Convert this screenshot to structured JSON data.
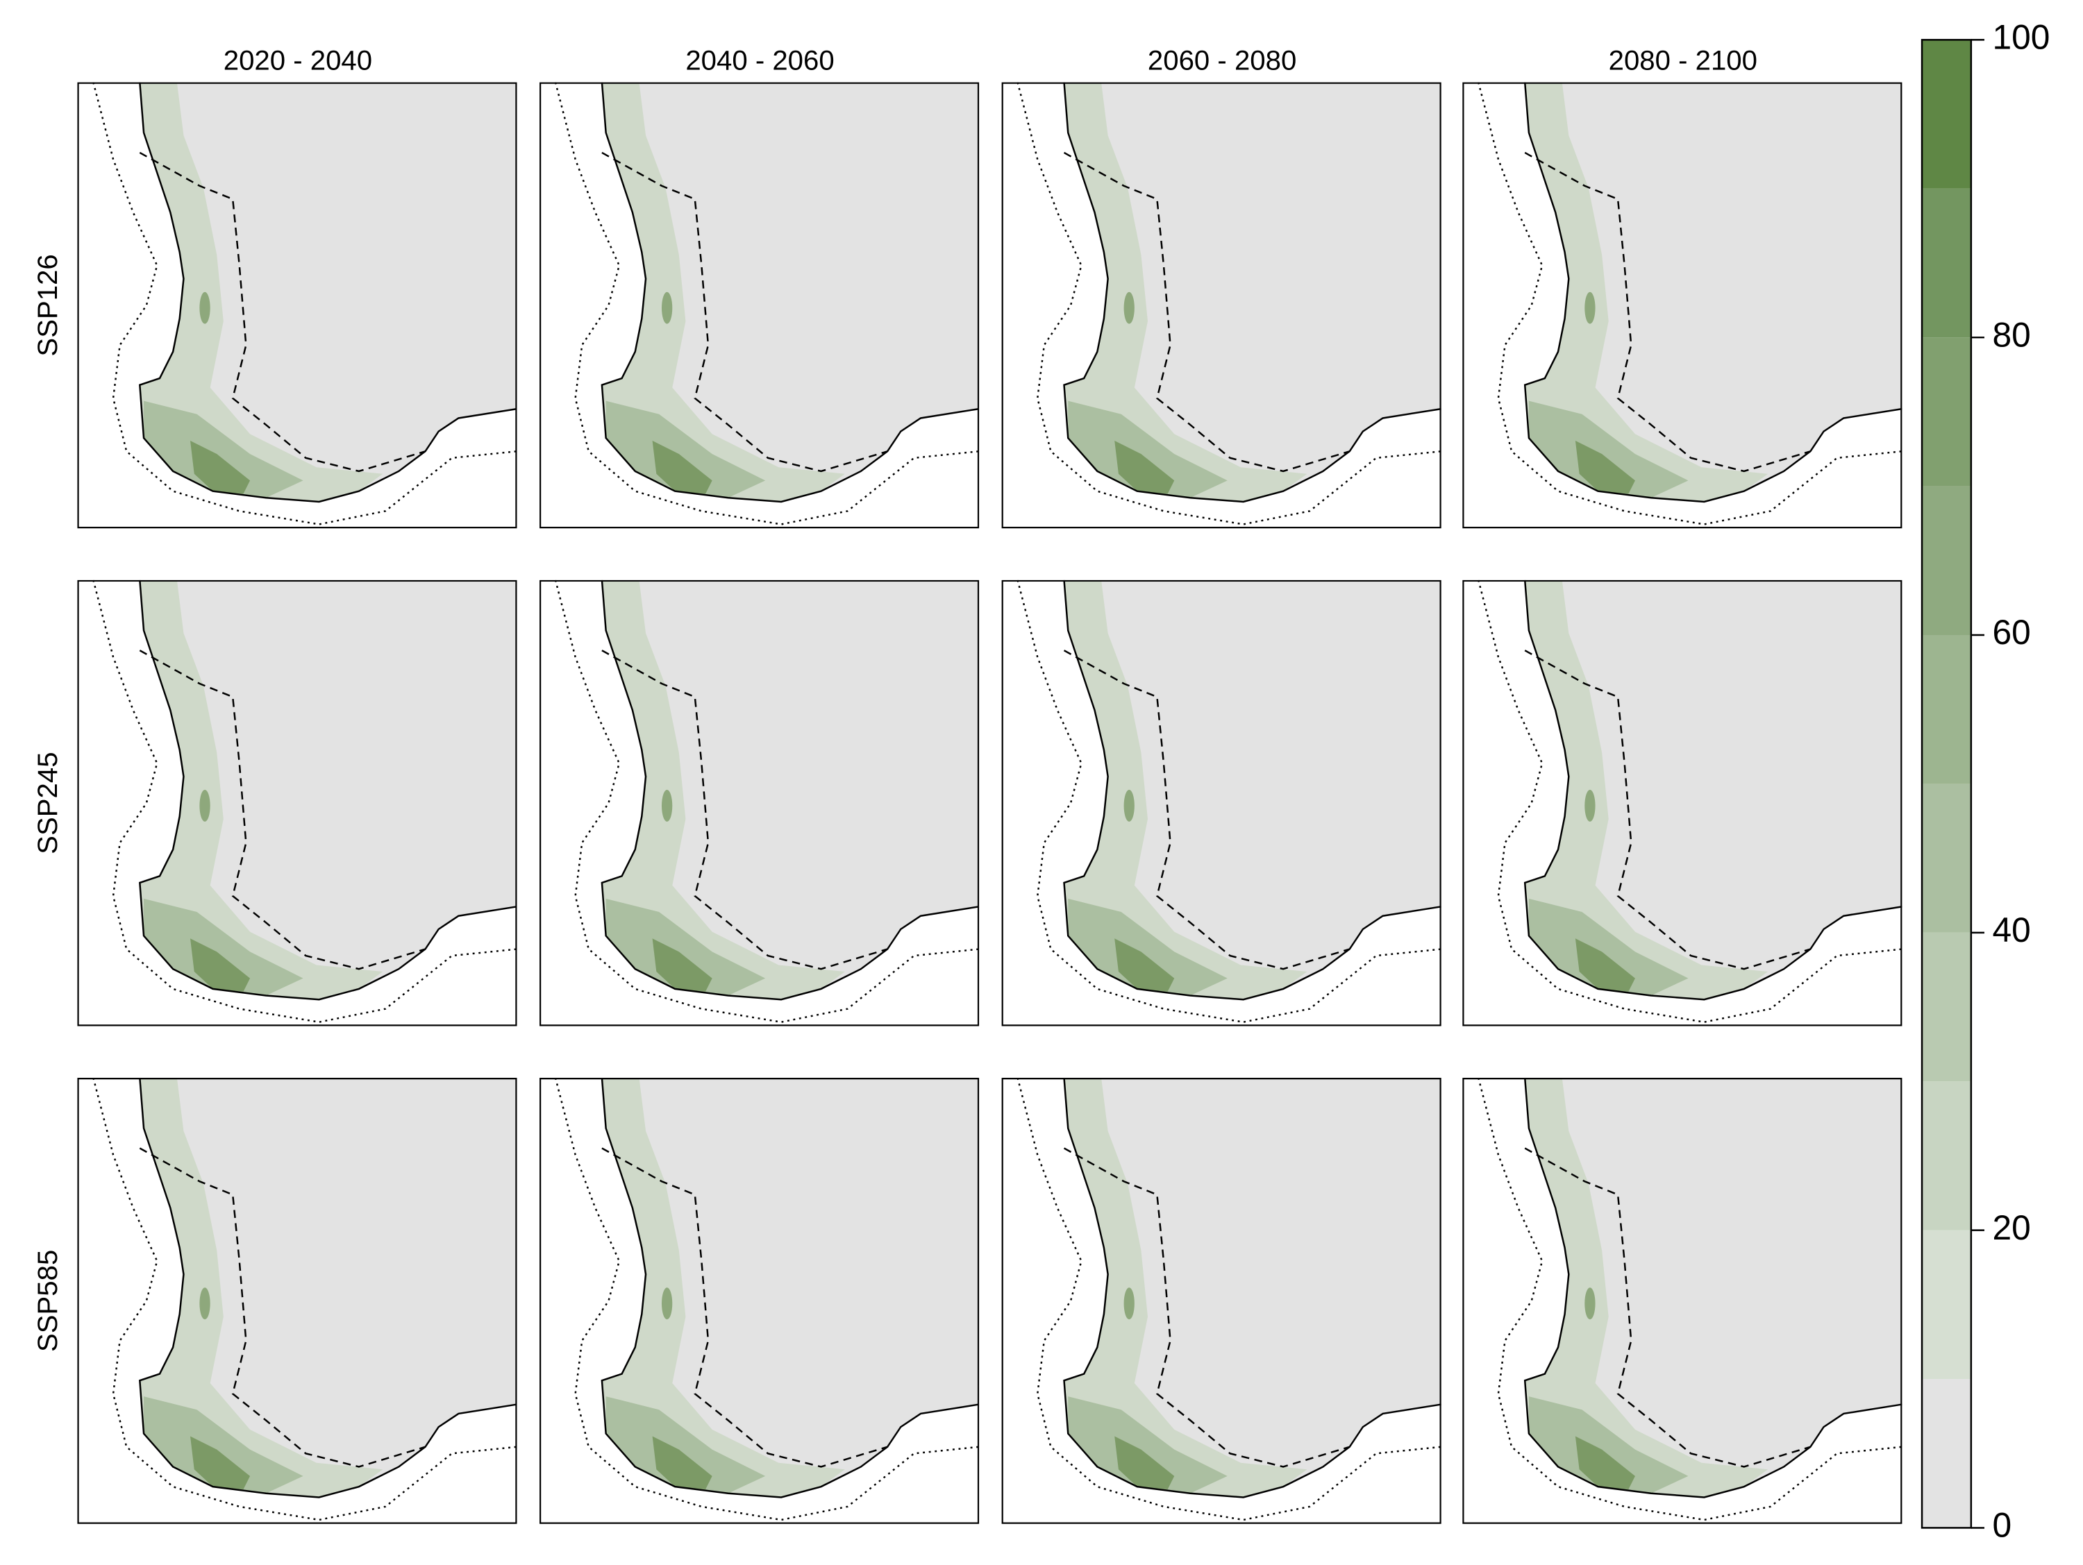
{
  "columns": [
    "2020 - 2040",
    "2040 - 2060",
    "2060 - 2080",
    "2080 - 2100"
  ],
  "rows": [
    "SSP126",
    "SSP245",
    "SSP585"
  ],
  "colorbar": {
    "lim": [
      0,
      100
    ],
    "ticks": [
      0,
      20,
      40,
      60,
      80,
      100
    ],
    "bins": [
      0,
      10,
      20,
      30,
      40,
      50,
      60,
      70,
      80,
      90,
      100
    ],
    "colors": [
      "#e3e3e3",
      "#d6dfd2",
      "#c8d5c2",
      "#b9cab1",
      "#abbfa1",
      "#9db590",
      "#8faa80",
      "#81a06f",
      "#739660",
      "#5f8745"
    ]
  }
}
